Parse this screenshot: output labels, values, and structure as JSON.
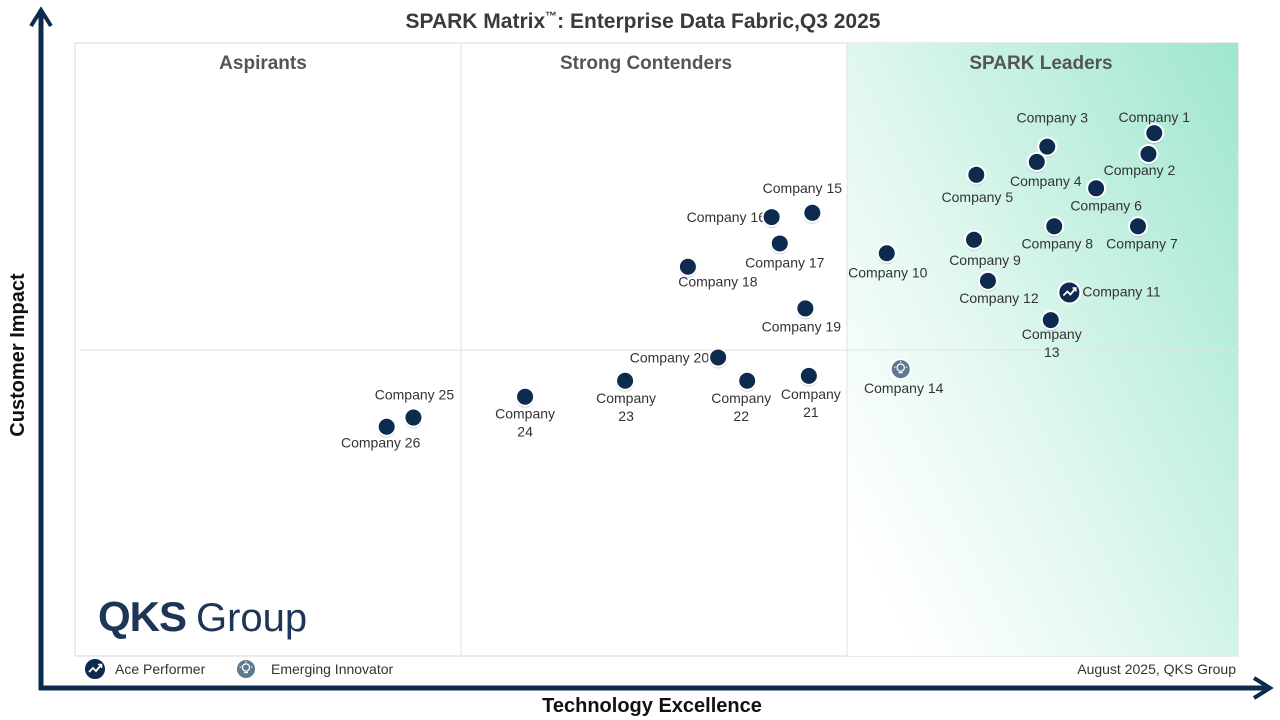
{
  "chart_data": {
    "type": "scatter",
    "title_main": "SPARK Matrix",
    "title_tm": "™",
    "title_rest": ": Enterprise Data Fabric,Q3 2025",
    "xlabel": "Technology Excellence",
    "ylabel": "Customer Impact",
    "xlim": [
      0,
      100
    ],
    "ylim": [
      0,
      100
    ],
    "zones": [
      "Aspirants",
      "Strong Contenders",
      "SPARK Leaders"
    ],
    "colors": {
      "marker": "#0d2a4f",
      "axis": "#0d2a4f",
      "leaders_fill": "#9ee6cf"
    },
    "points": [
      {
        "name": "Company 1",
        "x": 92.8,
        "y": 85.3,
        "type": "normal"
      },
      {
        "name": "Company 2",
        "x": 92.3,
        "y": 81.9,
        "type": "normal"
      },
      {
        "name": "Company 3",
        "x": 83.6,
        "y": 83.1,
        "type": "normal"
      },
      {
        "name": "Company 4",
        "x": 82.7,
        "y": 80.6,
        "type": "normal"
      },
      {
        "name": "Company 5",
        "x": 77.5,
        "y": 78.5,
        "type": "normal"
      },
      {
        "name": "Company 6",
        "x": 87.8,
        "y": 76.3,
        "type": "normal"
      },
      {
        "name": "Company 7",
        "x": 91.4,
        "y": 70.1,
        "type": "normal"
      },
      {
        "name": "Company 8",
        "x": 84.2,
        "y": 70.1,
        "type": "normal"
      },
      {
        "name": "Company 9",
        "x": 77.3,
        "y": 67.9,
        "type": "normal"
      },
      {
        "name": "Company 10",
        "x": 69.8,
        "y": 65.7,
        "type": "normal"
      },
      {
        "name": "Company 11",
        "x": 85.5,
        "y": 59.3,
        "type": "ace"
      },
      {
        "name": "Company 12",
        "x": 78.5,
        "y": 61.2,
        "type": "normal"
      },
      {
        "name": "Company 13",
        "x": 83.9,
        "y": 54.8,
        "type": "normal"
      },
      {
        "name": "Company 14",
        "x": 71.0,
        "y": 46.8,
        "type": "emerging"
      },
      {
        "name": "Company 15",
        "x": 63.4,
        "y": 72.3,
        "type": "normal"
      },
      {
        "name": "Company 16",
        "x": 59.9,
        "y": 71.6,
        "type": "normal"
      },
      {
        "name": "Company 17",
        "x": 60.6,
        "y": 67.3,
        "type": "normal"
      },
      {
        "name": "Company 18",
        "x": 52.7,
        "y": 63.5,
        "type": "normal"
      },
      {
        "name": "Company 19",
        "x": 62.8,
        "y": 56.7,
        "type": "normal"
      },
      {
        "name": "Company 20",
        "x": 55.3,
        "y": 48.7,
        "type": "normal"
      },
      {
        "name": "Company 21",
        "x": 63.1,
        "y": 45.7,
        "type": "normal"
      },
      {
        "name": "Company 22",
        "x": 57.8,
        "y": 44.9,
        "type": "normal"
      },
      {
        "name": "Company 23",
        "x": 47.3,
        "y": 44.9,
        "type": "normal"
      },
      {
        "name": "Company 24",
        "x": 38.7,
        "y": 42.3,
        "type": "normal"
      },
      {
        "name": "Company 25",
        "x": 29.1,
        "y": 38.9,
        "type": "normal"
      },
      {
        "name": "Company 26",
        "x": 26.8,
        "y": 37.4,
        "type": "normal"
      }
    ],
    "legend": [
      {
        "label": "Ace Performer",
        "type": "ace"
      },
      {
        "label": "Emerging Innovator",
        "type": "emerging"
      }
    ]
  },
  "footer_note": "August  2025, QKS Group",
  "logo": {
    "qks": "QKS",
    "group": "Group"
  }
}
